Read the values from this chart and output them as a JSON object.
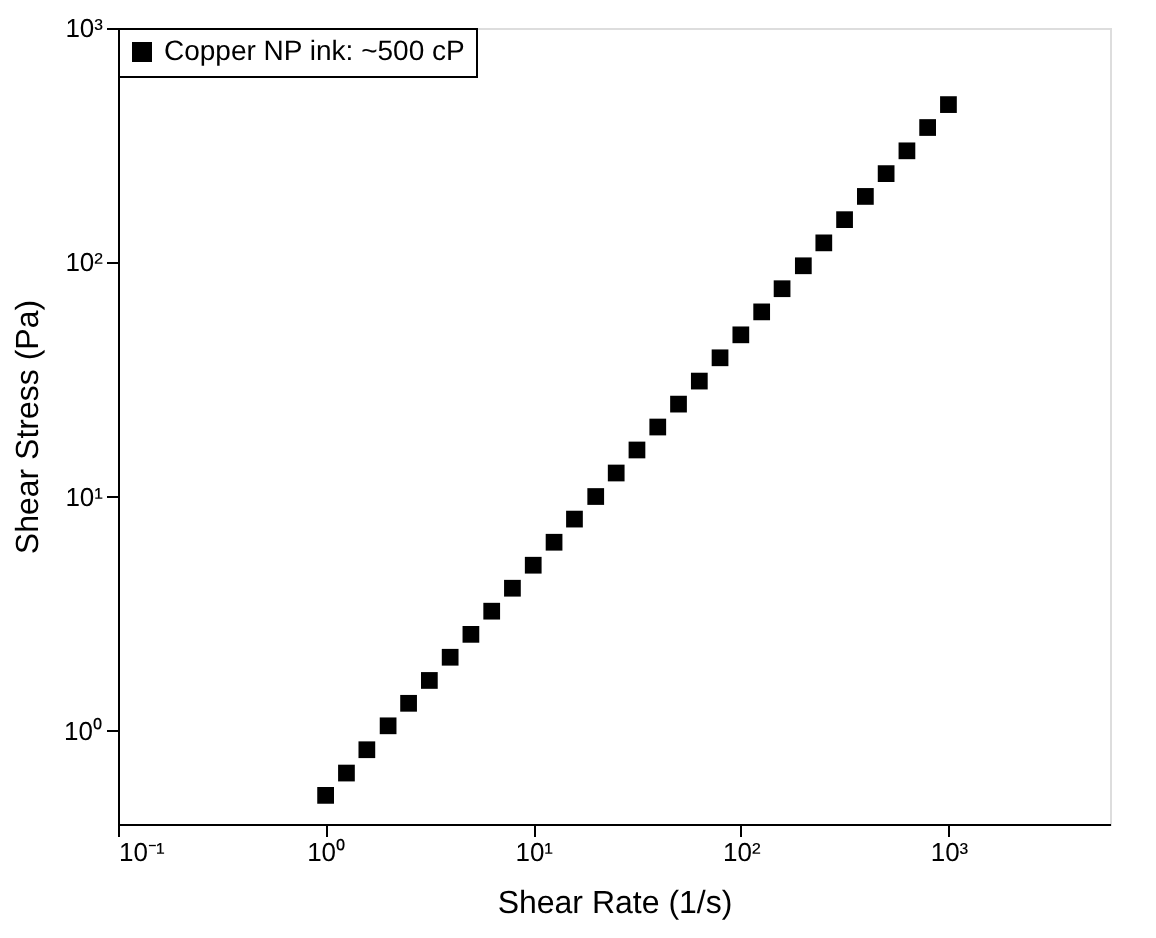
{
  "chart_data": {
    "type": "scatter",
    "xlabel": "Shear Rate (1/s)",
    "ylabel": "Shear Stress (Pa)",
    "x": [
      1,
      1.26,
      1.58,
      2,
      2.51,
      3.16,
      3.98,
      5.01,
      6.31,
      7.94,
      10,
      12.6,
      15.8,
      20,
      25.1,
      31.6,
      39.8,
      50.1,
      63.1,
      79.4,
      100,
      126,
      158,
      200,
      251,
      316,
      398,
      501,
      631,
      794,
      1000
    ],
    "series": [
      {
        "name": "Copper NP ink: ~500 cP",
        "color": "#000000",
        "values": [
          0.53,
          0.66,
          0.83,
          1.05,
          1.31,
          1.64,
          2.06,
          2.58,
          3.24,
          4.06,
          5.09,
          6.38,
          8.01,
          10.0,
          12.6,
          15.8,
          19.8,
          24.8,
          31.1,
          39.1,
          49.0,
          61.4,
          77.1,
          96.6,
          121,
          152,
          191,
          239,
          299,
          376,
          471
        ]
      }
    ],
    "log": "xy",
    "xlim": [
      0.1,
      6000
    ],
    "ylim": [
      0.4,
      1000
    ],
    "xticks": [
      {
        "value": 0.1,
        "label": "10⁻¹"
      },
      {
        "value": 1,
        "label": "10⁰"
      },
      {
        "value": 10,
        "label": "10¹"
      },
      {
        "value": 100,
        "label": "10²"
      },
      {
        "value": 1000,
        "label": "10³"
      }
    ],
    "yticks": [
      {
        "value": 1,
        "label": "10⁰"
      },
      {
        "value": 10,
        "label": "10¹"
      },
      {
        "value": 100,
        "label": "10²"
      },
      {
        "value": 1000,
        "label": "10³"
      }
    ],
    "marker": "square",
    "grid": false,
    "legend": "top left"
  }
}
